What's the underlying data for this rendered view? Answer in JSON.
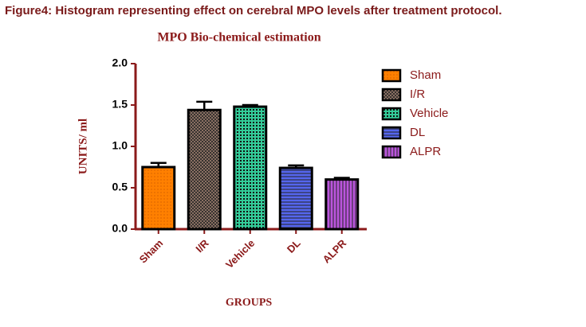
{
  "caption": "Figure4: Histogram representing effect on cerebral MPO levels after treatment protocol.",
  "chart_data": {
    "type": "bar",
    "title": "MPO Bio-chemical estimation",
    "xlabel": "GROUPS",
    "ylabel": "UNITS/ ml",
    "categories": [
      "Sham",
      "I/R",
      "Vehicle",
      "DL",
      "ALPR"
    ],
    "values": [
      0.75,
      1.44,
      1.48,
      0.74,
      0.6
    ],
    "errors": [
      0.05,
      0.1,
      0.02,
      0.03,
      0.02
    ],
    "colors": [
      "#ff8000",
      "#a08070",
      "#33cc99",
      "#5566ee",
      "#bb55dd"
    ],
    "ylim": [
      0,
      2
    ],
    "yticks": [
      {
        "value": 0,
        "label": "0.0"
      },
      {
        "value": 0.5,
        "label": "0.5"
      },
      {
        "value": 1,
        "label": "1.0"
      },
      {
        "value": 1.5,
        "label": "1.5"
      },
      {
        "value": 2,
        "label": "2.0"
      }
    ],
    "legend": "right"
  }
}
